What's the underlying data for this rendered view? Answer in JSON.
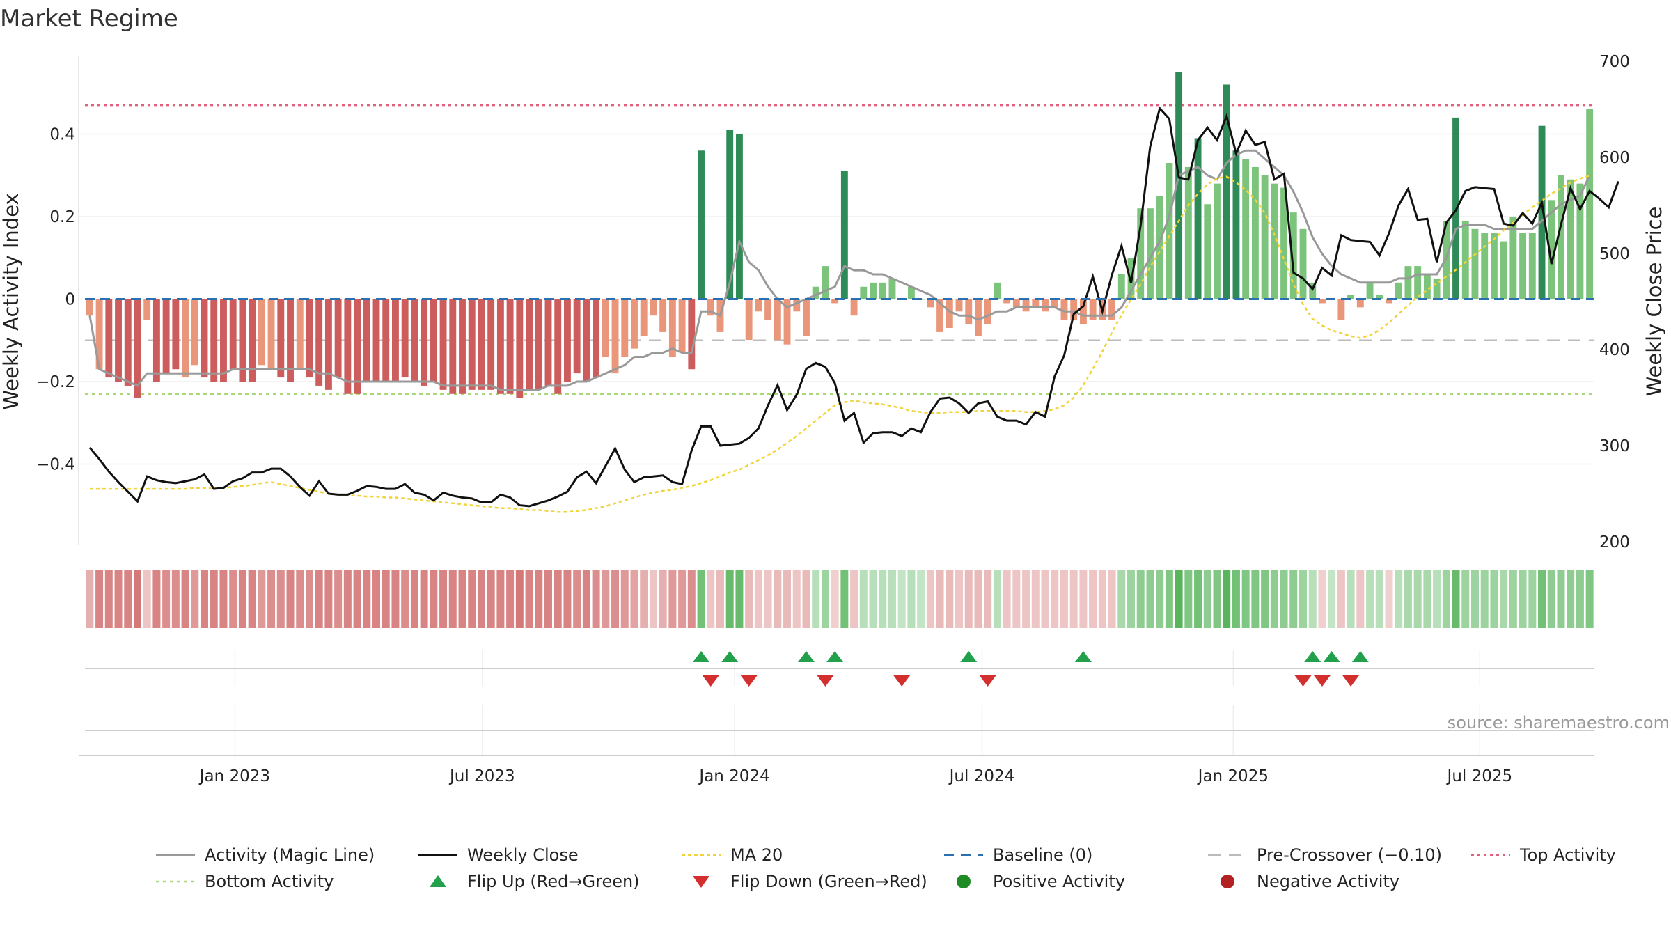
{
  "chart_data": {
    "type": "bar",
    "title": "Market Regime",
    "ylabel_left": "Weekly Activity Index",
    "ylabel_right": "Weekly Close Price",
    "ylim_left": [
      -0.595,
      0.59
    ],
    "ylim_right": [
      200,
      700
    ],
    "yticks_left": [
      {
        "value": 0.4,
        "label": "0.4"
      },
      {
        "value": 0.2,
        "label": "0.2"
      },
      {
        "value": 0,
        "label": "0"
      },
      {
        "value": -0.2,
        "label": "−0.2"
      },
      {
        "value": -0.4,
        "label": "−0.4"
      }
    ],
    "yticks_right": [
      {
        "value": 700,
        "label": "700"
      },
      {
        "value": 600,
        "label": "600"
      },
      {
        "value": 500,
        "label": "500"
      },
      {
        "value": 400,
        "label": "400"
      },
      {
        "value": 300,
        "label": "300"
      },
      {
        "value": 200,
        "label": "200"
      }
    ],
    "xlim_week_index": [
      0,
      157
    ],
    "xticks": [
      {
        "week": 15.2,
        "label": "Jan 2023"
      },
      {
        "week": 41.1,
        "label": "Jul 2023"
      },
      {
        "week": 67.5,
        "label": "Jan 2024"
      },
      {
        "week": 93.4,
        "label": "Jul 2024"
      },
      {
        "week": 119.7,
        "label": "Jan 2025"
      },
      {
        "week": 145.5,
        "label": "Jul 2025"
      }
    ],
    "reference_lines": {
      "baseline": 0,
      "pre_crossover": -0.1,
      "top_activity": 0.47,
      "bottom_activity": -0.23
    },
    "activity": [
      -0.04,
      -0.17,
      -0.19,
      -0.2,
      -0.21,
      -0.24,
      -0.05,
      -0.2,
      -0.18,
      -0.17,
      -0.19,
      -0.16,
      -0.19,
      -0.2,
      -0.2,
      -0.17,
      -0.2,
      -0.2,
      -0.16,
      -0.17,
      -0.19,
      -0.2,
      -0.17,
      -0.19,
      -0.21,
      -0.22,
      -0.19,
      -0.23,
      -0.23,
      -0.2,
      -0.2,
      -0.2,
      -0.2,
      -0.19,
      -0.2,
      -0.21,
      -0.2,
      -0.22,
      -0.23,
      -0.23,
      -0.22,
      -0.22,
      -0.22,
      -0.23,
      -0.23,
      -0.24,
      -0.22,
      -0.22,
      -0.21,
      -0.23,
      -0.2,
      -0.18,
      -0.2,
      -0.19,
      -0.14,
      -0.18,
      -0.14,
      -0.12,
      -0.09,
      -0.04,
      -0.08,
      -0.14,
      -0.13,
      -0.17,
      0.36,
      -0.04,
      -0.08,
      0.41,
      0.4,
      -0.1,
      -0.03,
      -0.05,
      -0.1,
      -0.11,
      -0.03,
      -0.09,
      0.03,
      0.08,
      -0.01,
      0.31,
      -0.04,
      0.03,
      0.04,
      0.04,
      0.05,
      0.0,
      0.03,
      0.0,
      -0.02,
      -0.08,
      -0.07,
      -0.03,
      -0.06,
      -0.09,
      -0.06,
      0.04,
      -0.01,
      -0.02,
      -0.03,
      -0.02,
      -0.03,
      -0.02,
      -0.05,
      -0.05,
      -0.06,
      -0.05,
      -0.05,
      -0.05,
      0.06,
      0.1,
      0.22,
      0.22,
      0.25,
      0.33,
      0.55,
      0.32,
      0.39,
      0.23,
      0.28,
      0.52,
      0.36,
      0.34,
      0.32,
      0.3,
      0.28,
      0.27,
      0.21,
      0.17,
      0.04,
      -0.01,
      0.0,
      -0.05,
      0.01,
      -0.02,
      0.04,
      0.01,
      -0.01,
      0.04,
      0.08,
      0.08,
      0.06,
      0.05,
      0.19,
      0.44,
      0.19,
      0.17,
      0.16,
      0.16,
      0.14,
      0.2,
      0.16,
      0.16,
      0.42,
      0.24,
      0.3,
      0.29,
      0.28,
      0.46
    ],
    "magic_line": [
      -0.04,
      -0.17,
      -0.18,
      -0.19,
      -0.2,
      -0.21,
      -0.18,
      -0.18,
      -0.18,
      -0.18,
      -0.18,
      -0.18,
      -0.18,
      -0.18,
      -0.18,
      -0.17,
      -0.17,
      -0.17,
      -0.17,
      -0.17,
      -0.17,
      -0.17,
      -0.17,
      -0.17,
      -0.18,
      -0.18,
      -0.19,
      -0.2,
      -0.2,
      -0.2,
      -0.2,
      -0.2,
      -0.2,
      -0.2,
      -0.2,
      -0.2,
      -0.2,
      -0.21,
      -0.21,
      -0.21,
      -0.21,
      -0.21,
      -0.21,
      -0.22,
      -0.22,
      -0.22,
      -0.22,
      -0.22,
      -0.21,
      -0.21,
      -0.21,
      -0.2,
      -0.2,
      -0.19,
      -0.18,
      -0.17,
      -0.16,
      -0.14,
      -0.14,
      -0.13,
      -0.13,
      -0.12,
      -0.13,
      -0.13,
      -0.03,
      -0.03,
      -0.04,
      0.04,
      0.14,
      0.09,
      0.07,
      0.03,
      0.0,
      -0.02,
      -0.01,
      0.0,
      0.01,
      0.02,
      0.03,
      0.08,
      0.07,
      0.07,
      0.06,
      0.06,
      0.05,
      0.04,
      0.03,
      0.02,
      0.01,
      -0.01,
      -0.03,
      -0.04,
      -0.04,
      -0.05,
      -0.04,
      -0.03,
      -0.03,
      -0.02,
      -0.02,
      -0.02,
      -0.02,
      -0.02,
      -0.03,
      -0.03,
      -0.04,
      -0.04,
      -0.04,
      -0.04,
      -0.02,
      0.02,
      0.06,
      0.1,
      0.14,
      0.2,
      0.3,
      0.31,
      0.32,
      0.3,
      0.29,
      0.33,
      0.35,
      0.36,
      0.36,
      0.34,
      0.32,
      0.3,
      0.26,
      0.21,
      0.15,
      0.11,
      0.08,
      0.06,
      0.05,
      0.04,
      0.04,
      0.04,
      0.04,
      0.05,
      0.05,
      0.06,
      0.06,
      0.06,
      0.1,
      0.17,
      0.18,
      0.18,
      0.18,
      0.17,
      0.17,
      0.17,
      0.17,
      0.17,
      0.19,
      0.21,
      0.23,
      0.24,
      0.25,
      0.3
    ],
    "weekly_close": [
      298,
      286,
      273,
      262,
      252,
      242,
      268,
      264,
      262,
      261,
      263,
      265,
      270,
      255,
      256,
      263,
      266,
      272,
      272,
      276,
      276,
      268,
      257,
      248,
      263,
      250,
      249,
      249,
      253,
      258,
      257,
      255,
      255,
      260,
      251,
      249,
      243,
      251,
      248,
      246,
      245,
      241,
      241,
      249,
      246,
      238,
      237,
      240,
      243,
      247,
      252,
      267,
      273,
      261,
      279,
      297,
      275,
      262,
      267,
      268,
      269,
      262,
      260,
      295,
      320,
      320,
      300,
      301,
      302,
      308,
      318,
      342,
      363,
      337,
      353,
      380,
      386,
      382,
      365,
      326,
      334,
      303,
      313,
      314,
      314,
      310,
      318,
      314,
      335,
      349,
      350,
      344,
      334,
      344,
      346,
      330,
      326,
      326,
      322,
      335,
      330,
      372,
      394,
      437,
      445,
      476,
      440,
      478,
      508,
      469,
      529,
      611,
      651,
      640,
      579,
      577,
      618,
      631,
      618,
      643,
      604,
      628,
      613,
      616,
      577,
      583,
      480,
      474,
      463,
      485,
      477,
      519,
      514,
      513,
      512,
      498,
      521,
      550,
      567,
      535,
      536,
      491,
      532,
      545,
      565,
      569,
      568,
      567,
      531,
      529,
      542,
      531,
      553,
      489,
      530,
      568,
      546,
      565,
      557,
      548,
      575
    ],
    "ma20": [
      255,
      255,
      255,
      255,
      255,
      255,
      255,
      255,
      255,
      255,
      255,
      256,
      256,
      256,
      256,
      257,
      258,
      259,
      261,
      262,
      260,
      258,
      256,
      254,
      252,
      250,
      249,
      248,
      248,
      247,
      247,
      246,
      246,
      245,
      244,
      243,
      242,
      241,
      240,
      239,
      238,
      237,
      236,
      235,
      235,
      234,
      233,
      233,
      232,
      231,
      231,
      232,
      233,
      235,
      237,
      240,
      243,
      246,
      249,
      251,
      253,
      254,
      256,
      258,
      261,
      264,
      268,
      272,
      275,
      280,
      285,
      290,
      296,
      303,
      310,
      318,
      326,
      334,
      342,
      345,
      347,
      345,
      344,
      343,
      341,
      339,
      336,
      335,
      334,
      334,
      335,
      335,
      335,
      336,
      336,
      336,
      336,
      336,
      335,
      335,
      336,
      338,
      342,
      350,
      363,
      380,
      398,
      418,
      436,
      452,
      468,
      486,
      502,
      518,
      534,
      550,
      562,
      572,
      578,
      580,
      574,
      566,
      556,
      542,
      520,
      494,
      468,
      447,
      432,
      425,
      420,
      417,
      414,
      412,
      415,
      420,
      428,
      437,
      446,
      455,
      462,
      469,
      476,
      483,
      491,
      499,
      507,
      515,
      524,
      532,
      540,
      548,
      555,
      562,
      568,
      574,
      578,
      581
    ],
    "heatmap_intensity": [
      -0.5,
      -0.9,
      -0.9,
      -0.9,
      -0.9,
      -1.0,
      -0.3,
      -0.9,
      -0.8,
      -0.8,
      -0.9,
      -0.7,
      -0.9,
      -0.9,
      -0.9,
      -0.8,
      -0.9,
      -0.9,
      -0.7,
      -0.8,
      -0.8,
      -0.9,
      -0.8,
      -0.8,
      -0.9,
      -0.9,
      -0.8,
      -0.9,
      -0.9,
      -0.9,
      -0.9,
      -0.9,
      -0.9,
      -0.8,
      -0.9,
      -0.9,
      -0.9,
      -0.9,
      -0.9,
      -0.9,
      -0.9,
      -0.9,
      -0.9,
      -0.9,
      -0.9,
      -1.0,
      -0.9,
      -0.9,
      -0.9,
      -0.9,
      -0.9,
      -0.8,
      -0.9,
      -0.8,
      -0.7,
      -0.8,
      -0.7,
      -0.6,
      -0.5,
      -0.3,
      -0.5,
      -0.7,
      -0.7,
      -0.8,
      0.8,
      -0.3,
      -0.4,
      0.9,
      0.9,
      -0.4,
      -0.3,
      -0.3,
      -0.4,
      -0.4,
      -0.3,
      -0.4,
      0.3,
      0.5,
      -0.2,
      0.8,
      -0.3,
      0.3,
      0.3,
      0.3,
      0.3,
      0.2,
      0.3,
      0.2,
      -0.3,
      -0.4,
      -0.4,
      -0.3,
      -0.4,
      -0.4,
      -0.4,
      0.3,
      -0.3,
      -0.3,
      -0.3,
      -0.3,
      -0.3,
      -0.3,
      -0.3,
      -0.3,
      -0.3,
      -0.3,
      -0.3,
      -0.3,
      0.4,
      0.5,
      0.6,
      0.6,
      0.6,
      0.7,
      1.0,
      0.7,
      0.8,
      0.6,
      0.7,
      1.0,
      0.8,
      0.7,
      0.7,
      0.7,
      0.6,
      0.6,
      0.6,
      0.5,
      0.3,
      -0.2,
      0.2,
      -0.3,
      0.3,
      -0.3,
      0.3,
      0.3,
      -0.2,
      0.3,
      0.4,
      0.4,
      0.4,
      0.3,
      0.5,
      0.9,
      0.5,
      0.5,
      0.5,
      0.5,
      0.4,
      0.5,
      0.5,
      0.5,
      0.8,
      0.6,
      0.6,
      0.6,
      0.6,
      0.7
    ],
    "flip_up_weeks": [
      64,
      67,
      75,
      78,
      92,
      104,
      128,
      130,
      133
    ],
    "flip_down_weeks": [
      65,
      69,
      77,
      85,
      94,
      127,
      129,
      132
    ],
    "source_note": "source: sharemaestro.com",
    "legend": [
      {
        "key": "magic",
        "label": "Activity (Magic Line)"
      },
      {
        "key": "close",
        "label": "Weekly Close"
      },
      {
        "key": "ma20",
        "label": "MA 20"
      },
      {
        "key": "baseline",
        "label": "Baseline (0)"
      },
      {
        "key": "precross",
        "label": "Pre-Crossover (−0.10)"
      },
      {
        "key": "top",
        "label": "Top Activity"
      },
      {
        "key": "bottom",
        "label": "Bottom Activity"
      },
      {
        "key": "flipup",
        "label": "Flip Up (Red→Green)"
      },
      {
        "key": "flipdown",
        "label": "Flip Down (Green→Red)"
      },
      {
        "key": "posdot",
        "label": "Positive Activity"
      },
      {
        "key": "negdot",
        "label": "Negative Activity"
      }
    ],
    "colors": {
      "pos_strong": "#2e8b57",
      "pos_light": "#7cc37c",
      "neg_strong": "#cd5c5c",
      "neg_light": "#e9967a",
      "magic_line": "#999999",
      "close_line": "#111111",
      "ma20": "#f2d43a",
      "baseline": "#2a6fb0",
      "pre_crossover": "#bbbbbb",
      "top_activity": "#e0607e",
      "bottom_activity": "#a8d877",
      "flip_up": "#22a04b",
      "flip_down": "#d32f2f",
      "positive_dot": "#1f8b24",
      "negative_dot": "#b22222"
    }
  }
}
